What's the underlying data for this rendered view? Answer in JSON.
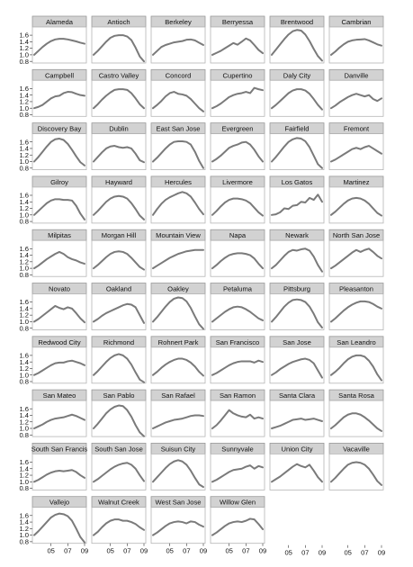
{
  "chart_data": {
    "type": "line",
    "layout": "small-multiples",
    "xlabel": "",
    "ylabel": "",
    "x_ticks": [
      "05",
      "07",
      "09"
    ],
    "x_tick_values": [
      2005,
      2007,
      2009
    ],
    "xlim": [
      2003,
      2009
    ],
    "y_ticks": [
      "0.8",
      "1.0",
      "1.2",
      "1.4",
      "1.6"
    ],
    "y_tick_values": [
      0.8,
      1.0,
      1.2,
      1.4,
      1.6
    ],
    "ylim": [
      0.75,
      1.85
    ],
    "x": [
      2003.0,
      2003.5,
      2004.0,
      2004.5,
      2005.0,
      2005.5,
      2006.0,
      2006.5,
      2007.0,
      2007.5,
      2008.0,
      2008.5,
      2009.0
    ],
    "colors": {
      "line": "#7a7a7a",
      "panel_border": "#b5b5b5",
      "strip_fill": "#d2d2d2",
      "strip_border": "#9a9a9a"
    },
    "panels": [
      {
        "name": "Alameda",
        "values": [
          1.0,
          1.12,
          1.24,
          1.34,
          1.42,
          1.47,
          1.49,
          1.49,
          1.47,
          1.44,
          1.41,
          1.37,
          1.34
        ]
      },
      {
        "name": "Antioch",
        "values": [
          1.0,
          1.12,
          1.26,
          1.4,
          1.52,
          1.58,
          1.6,
          1.6,
          1.56,
          1.45,
          1.22,
          0.95,
          0.8
        ]
      },
      {
        "name": "Berkeley",
        "values": [
          1.0,
          1.12,
          1.24,
          1.3,
          1.34,
          1.38,
          1.4,
          1.42,
          1.46,
          1.47,
          1.44,
          1.37,
          1.3
        ]
      },
      {
        "name": "Berryessa",
        "values": [
          1.0,
          1.06,
          1.12,
          1.2,
          1.28,
          1.36,
          1.31,
          1.4,
          1.5,
          1.44,
          1.3,
          1.15,
          1.05
        ]
      },
      {
        "name": "Brentwood",
        "values": [
          1.0,
          1.16,
          1.32,
          1.48,
          1.62,
          1.72,
          1.76,
          1.74,
          1.62,
          1.42,
          1.18,
          0.96,
          0.82
        ]
      },
      {
        "name": "Cambrian",
        "values": [
          1.0,
          1.1,
          1.22,
          1.32,
          1.4,
          1.44,
          1.46,
          1.47,
          1.48,
          1.44,
          1.38,
          1.32,
          1.28
        ]
      },
      {
        "name": "Campbell",
        "values": [
          1.0,
          1.04,
          1.1,
          1.2,
          1.3,
          1.36,
          1.38,
          1.46,
          1.5,
          1.49,
          1.44,
          1.4,
          1.38
        ]
      },
      {
        "name": "Castro Valley",
        "values": [
          1.0,
          1.12,
          1.26,
          1.38,
          1.48,
          1.56,
          1.58,
          1.58,
          1.56,
          1.46,
          1.3,
          1.12,
          1.0
        ]
      },
      {
        "name": "Concord",
        "values": [
          1.0,
          1.1,
          1.22,
          1.36,
          1.46,
          1.5,
          1.44,
          1.42,
          1.38,
          1.28,
          1.14,
          1.0,
          0.9
        ]
      },
      {
        "name": "Cupertino",
        "values": [
          1.0,
          1.06,
          1.14,
          1.24,
          1.34,
          1.4,
          1.44,
          1.46,
          1.5,
          1.46,
          1.62,
          1.58,
          1.55
        ]
      },
      {
        "name": "Daly City",
        "values": [
          1.0,
          1.1,
          1.22,
          1.34,
          1.46,
          1.54,
          1.58,
          1.58,
          1.54,
          1.44,
          1.28,
          1.1,
          0.96
        ]
      },
      {
        "name": "Danville",
        "values": [
          1.0,
          1.08,
          1.18,
          1.26,
          1.34,
          1.4,
          1.44,
          1.4,
          1.36,
          1.4,
          1.28,
          1.22,
          1.3
        ]
      },
      {
        "name": "Discovery Bay",
        "values": [
          1.0,
          1.14,
          1.3,
          1.46,
          1.6,
          1.68,
          1.7,
          1.66,
          1.54,
          1.36,
          1.16,
          0.98,
          0.88
        ]
      },
      {
        "name": "Dublin",
        "values": [
          1.0,
          1.14,
          1.28,
          1.4,
          1.46,
          1.48,
          1.44,
          1.42,
          1.44,
          1.4,
          1.24,
          1.04,
          0.98
        ]
      },
      {
        "name": "East San Jose",
        "values": [
          1.0,
          1.12,
          1.26,
          1.4,
          1.52,
          1.6,
          1.62,
          1.62,
          1.6,
          1.52,
          1.3,
          1.02,
          0.8
        ]
      },
      {
        "name": "Evergreen",
        "values": [
          1.0,
          1.08,
          1.18,
          1.3,
          1.42,
          1.48,
          1.52,
          1.58,
          1.6,
          1.52,
          1.36,
          1.16,
          1.0
        ]
      },
      {
        "name": "Fairfield",
        "values": [
          1.0,
          1.14,
          1.3,
          1.46,
          1.6,
          1.68,
          1.72,
          1.7,
          1.62,
          1.44,
          1.18,
          0.92,
          0.8
        ]
      },
      {
        "name": "Fremont",
        "values": [
          1.0,
          1.06,
          1.14,
          1.22,
          1.3,
          1.38,
          1.42,
          1.38,
          1.44,
          1.48,
          1.4,
          1.32,
          1.24
        ]
      },
      {
        "name": "Gilroy",
        "values": [
          1.0,
          1.12,
          1.24,
          1.36,
          1.44,
          1.48,
          1.48,
          1.46,
          1.46,
          1.44,
          1.28,
          1.04,
          0.86
        ]
      },
      {
        "name": "Hayward",
        "values": [
          1.0,
          1.12,
          1.26,
          1.4,
          1.5,
          1.56,
          1.58,
          1.56,
          1.5,
          1.36,
          1.18,
          0.98,
          0.86
        ]
      },
      {
        "name": "Hercules",
        "values": [
          1.0,
          1.18,
          1.34,
          1.46,
          1.54,
          1.6,
          1.66,
          1.7,
          1.66,
          1.56,
          1.38,
          1.18,
          1.02
        ]
      },
      {
        "name": "Livermore",
        "values": [
          1.0,
          1.12,
          1.26,
          1.38,
          1.46,
          1.5,
          1.5,
          1.48,
          1.44,
          1.36,
          1.22,
          1.08,
          0.98
        ]
      },
      {
        "name": "Los Gatos",
        "values": [
          1.0,
          1.02,
          1.08,
          1.2,
          1.18,
          1.28,
          1.3,
          1.4,
          1.38,
          1.52,
          1.46,
          1.62,
          1.4
        ]
      },
      {
        "name": "Martinez",
        "values": [
          1.0,
          1.1,
          1.22,
          1.34,
          1.44,
          1.5,
          1.52,
          1.5,
          1.44,
          1.34,
          1.2,
          1.06,
          0.98
        ]
      },
      {
        "name": "Milpitas",
        "values": [
          1.0,
          1.08,
          1.18,
          1.28,
          1.36,
          1.44,
          1.5,
          1.44,
          1.34,
          1.28,
          1.24,
          1.18,
          1.14
        ]
      },
      {
        "name": "Morgan Hill",
        "values": [
          1.0,
          1.1,
          1.22,
          1.34,
          1.44,
          1.5,
          1.52,
          1.5,
          1.44,
          1.32,
          1.18,
          1.04,
          0.96
        ]
      },
      {
        "name": "Mountain View",
        "values": [
          1.0,
          1.08,
          1.16,
          1.24,
          1.32,
          1.38,
          1.44,
          1.48,
          1.52,
          1.54,
          1.56,
          1.56,
          1.56
        ]
      },
      {
        "name": "Napa",
        "values": [
          1.0,
          1.1,
          1.22,
          1.32,
          1.4,
          1.44,
          1.46,
          1.46,
          1.44,
          1.4,
          1.3,
          1.14,
          1.0
        ]
      },
      {
        "name": "Newark",
        "values": [
          1.0,
          1.1,
          1.24,
          1.38,
          1.5,
          1.56,
          1.54,
          1.58,
          1.6,
          1.54,
          1.36,
          1.1,
          0.9
        ]
      },
      {
        "name": "North San Jose",
        "values": [
          1.0,
          1.08,
          1.18,
          1.28,
          1.38,
          1.48,
          1.56,
          1.5,
          1.56,
          1.6,
          1.5,
          1.38,
          1.3
        ]
      },
      {
        "name": "Novato",
        "values": [
          1.0,
          1.08,
          1.18,
          1.28,
          1.38,
          1.48,
          1.42,
          1.38,
          1.44,
          1.4,
          1.26,
          1.1,
          0.98
        ]
      },
      {
        "name": "Oakland",
        "values": [
          1.0,
          1.08,
          1.18,
          1.26,
          1.32,
          1.38,
          1.44,
          1.5,
          1.54,
          1.52,
          1.44,
          1.2,
          0.96
        ]
      },
      {
        "name": "Oakley",
        "values": [
          1.0,
          1.14,
          1.3,
          1.46,
          1.6,
          1.7,
          1.74,
          1.72,
          1.62,
          1.42,
          1.16,
          0.92,
          0.78
        ]
      },
      {
        "name": "Petaluma",
        "values": [
          1.0,
          1.1,
          1.2,
          1.3,
          1.38,
          1.44,
          1.46,
          1.44,
          1.38,
          1.3,
          1.2,
          1.1,
          1.04
        ]
      },
      {
        "name": "Pittsburg",
        "values": [
          1.0,
          1.14,
          1.3,
          1.46,
          1.58,
          1.66,
          1.68,
          1.66,
          1.6,
          1.46,
          1.24,
          0.98,
          0.82
        ]
      },
      {
        "name": "Pleasanton",
        "values": [
          1.0,
          1.1,
          1.22,
          1.34,
          1.44,
          1.52,
          1.58,
          1.62,
          1.62,
          1.6,
          1.54,
          1.46,
          1.4
        ]
      },
      {
        "name": "Redwood City",
        "values": [
          1.0,
          1.06,
          1.14,
          1.22,
          1.3,
          1.36,
          1.38,
          1.38,
          1.42,
          1.44,
          1.4,
          1.36,
          1.3
        ]
      },
      {
        "name": "Richmond",
        "values": [
          1.0,
          1.12,
          1.26,
          1.4,
          1.52,
          1.6,
          1.64,
          1.6,
          1.5,
          1.32,
          1.08,
          0.86,
          0.78
        ]
      },
      {
        "name": "Rohnert Park",
        "values": [
          1.0,
          1.1,
          1.22,
          1.32,
          1.4,
          1.46,
          1.5,
          1.5,
          1.46,
          1.38,
          1.26,
          1.1,
          0.98
        ]
      },
      {
        "name": "San Francisco",
        "values": [
          1.0,
          1.06,
          1.14,
          1.22,
          1.3,
          1.36,
          1.4,
          1.42,
          1.42,
          1.42,
          1.38,
          1.44,
          1.4
        ]
      },
      {
        "name": "San Jose",
        "values": [
          1.0,
          1.08,
          1.18,
          1.26,
          1.34,
          1.4,
          1.44,
          1.48,
          1.5,
          1.46,
          1.36,
          1.14,
          0.92
        ]
      },
      {
        "name": "San Leandro",
        "values": [
          1.0,
          1.1,
          1.22,
          1.36,
          1.48,
          1.56,
          1.6,
          1.6,
          1.56,
          1.44,
          1.26,
          1.02,
          0.84
        ]
      },
      {
        "name": "San Mateo",
        "values": [
          1.0,
          1.06,
          1.12,
          1.2,
          1.26,
          1.3,
          1.32,
          1.34,
          1.38,
          1.42,
          1.38,
          1.32,
          1.26
        ]
      },
      {
        "name": "San Pablo",
        "values": [
          1.0,
          1.14,
          1.3,
          1.46,
          1.58,
          1.66,
          1.7,
          1.68,
          1.56,
          1.36,
          1.1,
          0.88,
          0.76
        ]
      },
      {
        "name": "San Rafael",
        "values": [
          1.0,
          1.06,
          1.12,
          1.18,
          1.22,
          1.26,
          1.28,
          1.3,
          1.34,
          1.38,
          1.4,
          1.4,
          1.38
        ]
      },
      {
        "name": "San Ramon",
        "values": [
          1.0,
          1.1,
          1.24,
          1.4,
          1.56,
          1.46,
          1.4,
          1.36,
          1.34,
          1.42,
          1.3,
          1.34,
          1.3
        ]
      },
      {
        "name": "Santa Clara",
        "values": [
          1.0,
          1.04,
          1.08,
          1.14,
          1.2,
          1.26,
          1.28,
          1.3,
          1.26,
          1.28,
          1.3,
          1.26,
          1.22
        ]
      },
      {
        "name": "Santa Rosa",
        "values": [
          1.0,
          1.1,
          1.22,
          1.34,
          1.42,
          1.46,
          1.46,
          1.42,
          1.34,
          1.24,
          1.12,
          1.0,
          0.92
        ]
      },
      {
        "name": "South San Francis",
        "values": [
          1.0,
          1.06,
          1.14,
          1.22,
          1.28,
          1.32,
          1.34,
          1.32,
          1.34,
          1.36,
          1.3,
          1.2,
          1.12
        ]
      },
      {
        "name": "South San Jose",
        "values": [
          1.0,
          1.08,
          1.18,
          1.28,
          1.38,
          1.46,
          1.52,
          1.56,
          1.58,
          1.52,
          1.4,
          1.2,
          1.02
        ]
      },
      {
        "name": "Suisun City",
        "values": [
          1.0,
          1.14,
          1.28,
          1.42,
          1.54,
          1.62,
          1.66,
          1.62,
          1.52,
          1.34,
          1.12,
          0.92,
          0.84
        ]
      },
      {
        "name": "Sunnyvale",
        "values": [
          1.0,
          1.06,
          1.14,
          1.22,
          1.3,
          1.36,
          1.38,
          1.4,
          1.46,
          1.5,
          1.4,
          1.48,
          1.44
        ]
      },
      {
        "name": "Union City",
        "values": [
          1.0,
          1.08,
          1.16,
          1.26,
          1.36,
          1.46,
          1.54,
          1.48,
          1.44,
          1.52,
          1.34,
          1.14,
          1.0
        ]
      },
      {
        "name": "Vacaville",
        "values": [
          1.0,
          1.12,
          1.26,
          1.4,
          1.52,
          1.58,
          1.6,
          1.58,
          1.52,
          1.4,
          1.22,
          1.02,
          0.9
        ]
      },
      {
        "name": "Vallejo",
        "values": [
          1.0,
          1.12,
          1.26,
          1.4,
          1.54,
          1.62,
          1.66,
          1.64,
          1.58,
          1.44,
          1.2,
          0.94,
          0.78
        ]
      },
      {
        "name": "Walnut Creek",
        "values": [
          1.0,
          1.1,
          1.24,
          1.36,
          1.44,
          1.48,
          1.48,
          1.44,
          1.44,
          1.4,
          1.34,
          1.24,
          1.16
        ]
      },
      {
        "name": "West San Jose",
        "values": [
          1.0,
          1.08,
          1.18,
          1.28,
          1.36,
          1.4,
          1.42,
          1.4,
          1.36,
          1.42,
          1.4,
          1.32,
          1.26
        ]
      },
      {
        "name": "Willow Glen",
        "values": [
          1.0,
          1.08,
          1.18,
          1.28,
          1.36,
          1.4,
          1.42,
          1.4,
          1.44,
          1.5,
          1.48,
          1.34,
          1.18
        ]
      }
    ]
  }
}
